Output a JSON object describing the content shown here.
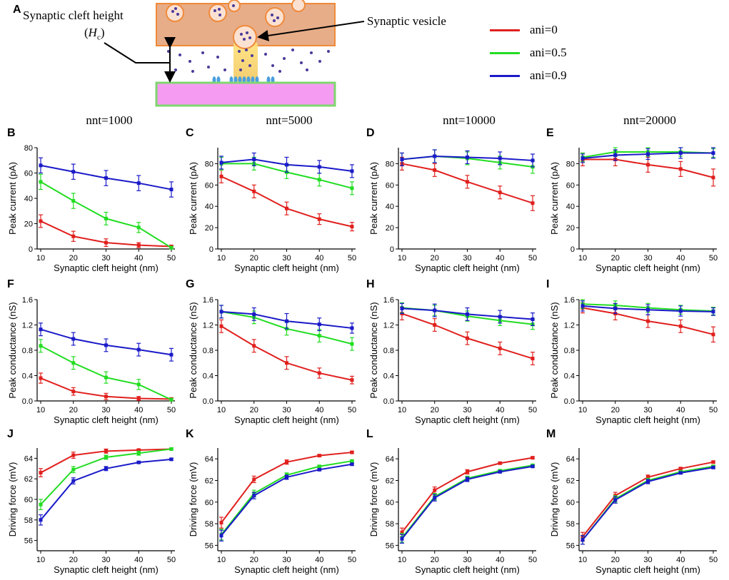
{
  "figure_labels": [
    "A",
    "B",
    "C",
    "D",
    "E",
    "F",
    "G",
    "H",
    "I",
    "J",
    "K",
    "L",
    "M"
  ],
  "diagram": {
    "cleft_label": "Synaptic cleft height",
    "cleft_symbol_main": "H",
    "cleft_symbol_sub": "c",
    "vesicle_label": "Synaptic vesicle"
  },
  "column_titles": [
    "nnt=1000",
    "nnt=5000",
    "nnt=10000",
    "nnt=20000"
  ],
  "legend": [
    {
      "label": "ani=0",
      "color": "#e0201e"
    },
    {
      "label": "ani=0.5",
      "color": "#22dd22"
    },
    {
      "label": "ani=0.9",
      "color": "#1a1ac8"
    }
  ],
  "colors": {
    "ani0": "#e0201e",
    "ani05": "#22dd22",
    "ani09": "#1a1ac8",
    "presynaptic": "#e7ad88",
    "postsynaptic": "#f59cf2"
  },
  "chart_data": [
    {
      "id": "B",
      "type": "line",
      "title": "",
      "xlabel": "Synaptic cleft height (nm)",
      "ylabel": "Peak current (pA)",
      "x": [
        10,
        20,
        30,
        40,
        50
      ],
      "xticks": [
        "10",
        "20",
        "30",
        "40",
        "50"
      ],
      "xlim": [
        10,
        50
      ],
      "ylim": [
        0,
        80
      ],
      "yticks": [
        0,
        20,
        40,
        60,
        80
      ],
      "ytick_labels": [
        "0",
        "20",
        "40",
        "60",
        "80"
      ],
      "series": [
        {
          "name": "ani=0",
          "values": [
            22,
            10,
            5,
            3,
            2
          ],
          "errors": [
            5,
            4,
            3,
            2,
            1
          ]
        },
        {
          "name": "ani=0.5",
          "values": [
            53,
            38,
            24,
            17,
            1
          ],
          "errors": [
            6,
            6,
            5,
            4,
            1
          ]
        },
        {
          "name": "ani=0.9",
          "values": [
            66,
            61,
            56,
            52,
            47
          ],
          "errors": [
            6,
            6,
            6,
            6,
            6
          ]
        }
      ]
    },
    {
      "id": "C",
      "type": "line",
      "title": "",
      "xlabel": "Synaptic cleft height (nm)",
      "ylabel": "Peak current (pA)",
      "x": [
        10,
        20,
        30,
        40,
        50
      ],
      "xticks": [
        "10",
        "20",
        "30",
        "40",
        "50"
      ],
      "xlim": [
        10,
        50
      ],
      "ylim": [
        0,
        95
      ],
      "yticks": [
        0,
        20,
        40,
        60,
        80
      ],
      "ytick_labels": [
        "0",
        "20",
        "40",
        "60",
        "80"
      ],
      "series": [
        {
          "name": "ani=0",
          "values": [
            68,
            54,
            38,
            28,
            21
          ],
          "errors": [
            6,
            6,
            6,
            5,
            4
          ]
        },
        {
          "name": "ani=0.5",
          "values": [
            80,
            80,
            72,
            65,
            57
          ],
          "errors": [
            6,
            6,
            6,
            6,
            6
          ]
        },
        {
          "name": "ani=0.9",
          "values": [
            81,
            84,
            79,
            77,
            73
          ],
          "errors": [
            6,
            6,
            7,
            6,
            6
          ]
        }
      ]
    },
    {
      "id": "D",
      "type": "line",
      "title": "",
      "xlabel": "Synaptic cleft height (nm)",
      "ylabel": "Peak current (pA)",
      "x": [
        10,
        20,
        30,
        40,
        50
      ],
      "xticks": [
        "10",
        "20",
        "30",
        "40",
        "50"
      ],
      "xlim": [
        10,
        50
      ],
      "ylim": [
        0,
        95
      ],
      "yticks": [
        0,
        20,
        40,
        60,
        80
      ],
      "ytick_labels": [
        "0",
        "20",
        "40",
        "60",
        "80"
      ],
      "series": [
        {
          "name": "ani=0",
          "values": [
            80,
            74,
            63,
            53,
            43
          ],
          "errors": [
            6,
            6,
            6,
            6,
            7
          ]
        },
        {
          "name": "ani=0.5",
          "values": [
            84,
            87,
            85,
            81,
            77
          ],
          "errors": [
            6,
            6,
            6,
            6,
            6
          ]
        },
        {
          "name": "ani=0.9",
          "values": [
            84,
            87,
            86,
            85,
            83
          ],
          "errors": [
            6,
            6,
            6,
            6,
            6
          ]
        }
      ]
    },
    {
      "id": "E",
      "type": "line",
      "title": "",
      "xlabel": "Synaptic cleft height (nm)",
      "ylabel": "Peak current (pA)",
      "x": [
        10,
        20,
        30,
        40,
        50
      ],
      "xticks": [
        "10",
        "20",
        "30",
        "40",
        "50"
      ],
      "xlim": [
        10,
        50
      ],
      "ylim": [
        0,
        95
      ],
      "yticks": [
        0,
        20,
        40,
        60,
        80
      ],
      "ytick_labels": [
        "0",
        "20",
        "40",
        "60",
        "80"
      ],
      "series": [
        {
          "name": "ani=0",
          "values": [
            84,
            84,
            79,
            75,
            67
          ],
          "errors": [
            6,
            6,
            7,
            7,
            8
          ]
        },
        {
          "name": "ani=0.5",
          "values": [
            86,
            91,
            91,
            91,
            90
          ],
          "errors": [
            4,
            4,
            4,
            4,
            4
          ]
        },
        {
          "name": "ani=0.9",
          "values": [
            85,
            88,
            89,
            90,
            90
          ],
          "errors": [
            4,
            5,
            5,
            5,
            5
          ]
        }
      ]
    },
    {
      "id": "F",
      "type": "line",
      "title": "",
      "xlabel": "Synaptic cleft height (nm)",
      "ylabel": "Peak conductance (nS)",
      "x": [
        10,
        20,
        30,
        40,
        50
      ],
      "xticks": [
        "10",
        "20",
        "30",
        "40",
        "50"
      ],
      "xlim": [
        10,
        50
      ],
      "ylim": [
        0,
        1.6
      ],
      "yticks": [
        0,
        0.4,
        0.8,
        1.2,
        1.6
      ],
      "ytick_labels": [
        "0.0",
        "0.4",
        "0.8",
        "1.2",
        "1.6"
      ],
      "series": [
        {
          "name": "ani=0",
          "values": [
            0.36,
            0.15,
            0.07,
            0.04,
            0.03
          ],
          "errors": [
            0.08,
            0.06,
            0.05,
            0.03,
            0.02
          ]
        },
        {
          "name": "ani=0.5",
          "values": [
            0.87,
            0.6,
            0.37,
            0.26,
            0.02
          ],
          "errors": [
            0.1,
            0.1,
            0.09,
            0.08,
            0.02
          ]
        },
        {
          "name": "ani=0.9",
          "values": [
            1.13,
            0.98,
            0.88,
            0.81,
            0.73
          ],
          "errors": [
            0.1,
            0.1,
            0.1,
            0.1,
            0.1
          ]
        }
      ]
    },
    {
      "id": "G",
      "type": "line",
      "title": "",
      "xlabel": "Synaptic cleft height (nm)",
      "ylabel": "Peak conductance (nS)",
      "x": [
        10,
        20,
        30,
        40,
        50
      ],
      "xticks": [
        "10",
        "20",
        "30",
        "40",
        "50"
      ],
      "xlim": [
        10,
        50
      ],
      "ylim": [
        0,
        1.6
      ],
      "yticks": [
        0,
        0.4,
        0.8,
        1.2,
        1.6
      ],
      "ytick_labels": [
        "0.0",
        "0.4",
        "0.8",
        "1.2",
        "1.6"
      ],
      "series": [
        {
          "name": "ani=0",
          "values": [
            1.18,
            0.87,
            0.6,
            0.44,
            0.33
          ],
          "errors": [
            0.1,
            0.1,
            0.1,
            0.08,
            0.06
          ]
        },
        {
          "name": "ani=0.5",
          "values": [
            1.41,
            1.32,
            1.14,
            1.03,
            0.9
          ],
          "errors": [
            0.1,
            0.1,
            0.1,
            0.1,
            0.1
          ]
        },
        {
          "name": "ani=0.9",
          "values": [
            1.41,
            1.37,
            1.26,
            1.21,
            1.15
          ],
          "errors": [
            0.1,
            0.1,
            0.12,
            0.1,
            0.08
          ]
        }
      ]
    },
    {
      "id": "H",
      "type": "line",
      "title": "",
      "xlabel": "Synaptic cleft height (nm)",
      "ylabel": "Peak conductance (nS)",
      "x": [
        10,
        20,
        30,
        40,
        50
      ],
      "xticks": [
        "10",
        "20",
        "30",
        "40",
        "50"
      ],
      "xlim": [
        10,
        50
      ],
      "ylim": [
        0,
        1.6
      ],
      "yticks": [
        0,
        0.4,
        0.8,
        1.2,
        1.6
      ],
      "ytick_labels": [
        "0.0",
        "0.4",
        "0.8",
        "1.2",
        "1.6"
      ],
      "series": [
        {
          "name": "ani=0",
          "values": [
            1.38,
            1.2,
            0.99,
            0.83,
            0.67
          ],
          "errors": [
            0.1,
            0.1,
            0.1,
            0.1,
            0.1
          ]
        },
        {
          "name": "ani=0.5",
          "values": [
            1.47,
            1.43,
            1.34,
            1.27,
            1.21
          ],
          "errors": [
            0.08,
            0.08,
            0.08,
            0.08,
            0.08
          ]
        },
        {
          "name": "ani=0.9",
          "values": [
            1.46,
            1.43,
            1.37,
            1.33,
            1.29
          ],
          "errors": [
            0.08,
            0.1,
            0.1,
            0.1,
            0.1
          ]
        }
      ]
    },
    {
      "id": "I",
      "type": "line",
      "title": "",
      "xlabel": "Synaptic cleft height (nm)",
      "ylabel": "Peak conductance (nS)",
      "x": [
        10,
        20,
        30,
        40,
        50
      ],
      "xticks": [
        "10",
        "20",
        "30",
        "40",
        "50"
      ],
      "xlim": [
        10,
        50
      ],
      "ylim": [
        0,
        1.6
      ],
      "yticks": [
        0,
        0.4,
        0.8,
        1.2,
        1.6
      ],
      "ytick_labels": [
        "0.0",
        "0.4",
        "0.8",
        "1.2",
        "1.6"
      ],
      "series": [
        {
          "name": "ani=0",
          "values": [
            1.47,
            1.38,
            1.26,
            1.18,
            1.05
          ],
          "errors": [
            0.08,
            0.1,
            0.1,
            0.1,
            0.12
          ]
        },
        {
          "name": "ani=0.5",
          "values": [
            1.53,
            1.51,
            1.47,
            1.44,
            1.42
          ],
          "errors": [
            0.07,
            0.07,
            0.07,
            0.07,
            0.06
          ]
        },
        {
          "name": "ani=0.9",
          "values": [
            1.5,
            1.46,
            1.44,
            1.42,
            1.41
          ],
          "errors": [
            0.08,
            0.08,
            0.08,
            0.08,
            0.06
          ]
        }
      ]
    },
    {
      "id": "J",
      "type": "line",
      "title": "",
      "xlabel": "Synaptic cleft height (nm)",
      "ylabel": "Driving force (mV)",
      "x": [
        10,
        20,
        30,
        40,
        50
      ],
      "xticks": [
        "10",
        "20",
        "30",
        "40",
        "50"
      ],
      "xlim": [
        10,
        50
      ],
      "ylim": [
        55,
        65
      ],
      "yticks": [
        56,
        58,
        60,
        62,
        64
      ],
      "ytick_labels": [
        "56",
        "58",
        "60",
        "62",
        "64"
      ],
      "series": [
        {
          "name": "ani=0",
          "values": [
            62.6,
            64.3,
            64.7,
            64.8,
            64.9
          ],
          "errors": [
            0.4,
            0.3,
            0.2,
            0.1,
            0.1
          ]
        },
        {
          "name": "ani=0.5",
          "values": [
            59.5,
            62.9,
            64.1,
            64.5,
            64.9
          ],
          "errors": [
            0.5,
            0.3,
            0.2,
            0.2,
            0.1
          ]
        },
        {
          "name": "ani=0.9",
          "values": [
            58.0,
            61.8,
            63.0,
            63.6,
            63.9
          ],
          "errors": [
            0.5,
            0.3,
            0.2,
            0.1,
            0.1
          ]
        }
      ]
    },
    {
      "id": "K",
      "type": "line",
      "title": "",
      "xlabel": "Synaptic cleft height (nm)",
      "ylabel": "Driving force (mV)",
      "x": [
        10,
        20,
        30,
        40,
        50
      ],
      "xticks": [
        "10",
        "20",
        "30",
        "40",
        "50"
      ],
      "xlim": [
        10,
        50
      ],
      "ylim": [
        55.5,
        65
      ],
      "yticks": [
        56,
        58,
        60,
        62,
        64
      ],
      "ytick_labels": [
        "56",
        "58",
        "60",
        "62",
        "64"
      ],
      "series": [
        {
          "name": "ani=0",
          "values": [
            58.1,
            62.1,
            63.7,
            64.3,
            64.6
          ],
          "errors": [
            0.5,
            0.3,
            0.2,
            0.1,
            0.1
          ]
        },
        {
          "name": "ani=0.5",
          "values": [
            57.0,
            60.8,
            62.5,
            63.3,
            63.8
          ],
          "errors": [
            0.5,
            0.3,
            0.2,
            0.1,
            0.1
          ]
        },
        {
          "name": "ani=0.9",
          "values": [
            56.9,
            60.6,
            62.3,
            63.0,
            63.5
          ],
          "errors": [
            0.5,
            0.3,
            0.2,
            0.1,
            0.1
          ]
        }
      ]
    },
    {
      "id": "L",
      "type": "line",
      "title": "",
      "xlabel": "Synaptic cleft height (nm)",
      "ylabel": "Driving force (mV)",
      "x": [
        10,
        20,
        30,
        40,
        50
      ],
      "xticks": [
        "10",
        "20",
        "30",
        "40",
        "50"
      ],
      "xlim": [
        10,
        50
      ],
      "ylim": [
        55.5,
        65
      ],
      "yticks": [
        56,
        58,
        60,
        62,
        64
      ],
      "ytick_labels": [
        "56",
        "58",
        "60",
        "62",
        "64"
      ],
      "series": [
        {
          "name": "ani=0",
          "values": [
            57.2,
            61.1,
            62.8,
            63.6,
            64.1
          ],
          "errors": [
            0.4,
            0.3,
            0.2,
            0.1,
            0.1
          ]
        },
        {
          "name": "ani=0.5",
          "values": [
            56.7,
            60.5,
            62.2,
            62.9,
            63.4
          ],
          "errors": [
            0.4,
            0.3,
            0.2,
            0.1,
            0.1
          ]
        },
        {
          "name": "ani=0.9",
          "values": [
            56.6,
            60.4,
            62.1,
            62.8,
            63.3
          ],
          "errors": [
            0.4,
            0.3,
            0.2,
            0.1,
            0.1
          ]
        }
      ]
    },
    {
      "id": "M",
      "type": "line",
      "title": "",
      "xlabel": "Synaptic cleft height (nm)",
      "ylabel": "Driving force (mV)",
      "x": [
        10,
        20,
        30,
        40,
        50
      ],
      "xticks": [
        "10",
        "20",
        "30",
        "40",
        "50"
      ],
      "xlim": [
        10,
        50
      ],
      "ylim": [
        55.5,
        65
      ],
      "yticks": [
        56,
        58,
        60,
        62,
        64
      ],
      "ytick_labels": [
        "56",
        "58",
        "60",
        "62",
        "64"
      ],
      "series": [
        {
          "name": "ani=0",
          "values": [
            56.8,
            60.6,
            62.3,
            63.1,
            63.7
          ],
          "errors": [
            0.4,
            0.3,
            0.2,
            0.1,
            0.1
          ]
        },
        {
          "name": "ani=0.5",
          "values": [
            56.5,
            60.3,
            62.0,
            62.8,
            63.3
          ],
          "errors": [
            0.4,
            0.3,
            0.2,
            0.1,
            0.1
          ]
        },
        {
          "name": "ani=0.9",
          "values": [
            56.5,
            60.2,
            61.9,
            62.7,
            63.2
          ],
          "errors": [
            0.4,
            0.3,
            0.2,
            0.1,
            0.1
          ]
        }
      ]
    }
  ]
}
